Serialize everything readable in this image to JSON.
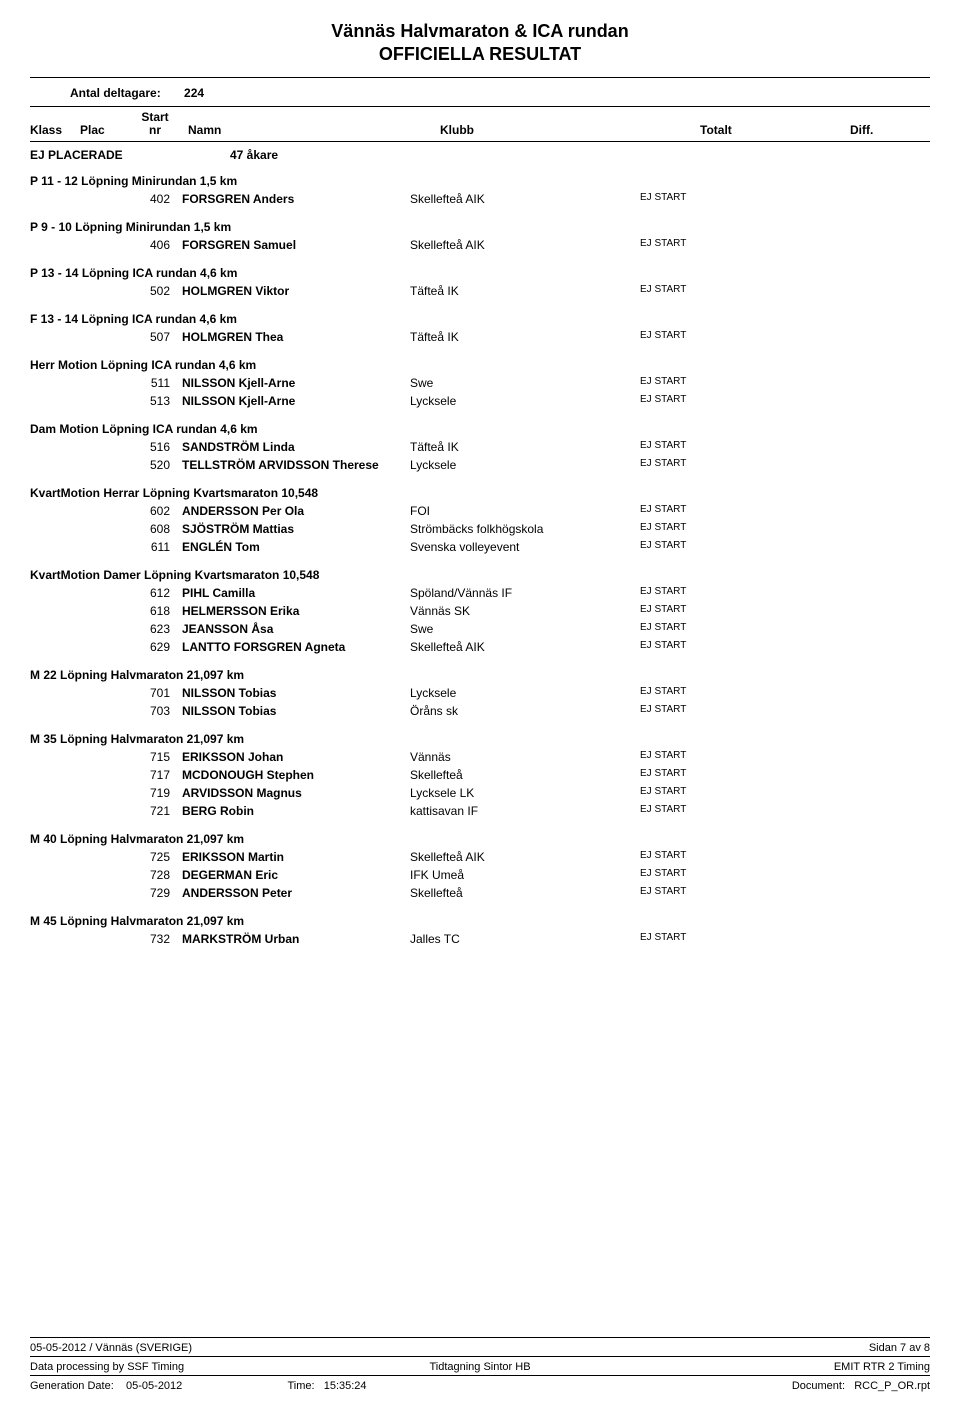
{
  "title": {
    "line1": "Vännäs Halvmaraton & ICA rundan",
    "line2": "OFFICIELLA RESULTAT"
  },
  "participants": {
    "label": "Antal deltagare:",
    "count": "224"
  },
  "headers": {
    "klass": "Klass",
    "plac": "Plac",
    "start": "Start",
    "nr": "nr",
    "namn": "Namn",
    "klubb": "Klubb",
    "totalt": "Totalt",
    "diff": "Diff."
  },
  "ej_placerade": {
    "label": "EJ PLACERADE",
    "akare": "47 åkare"
  },
  "status_label": "EJ START",
  "groups": [
    {
      "title": "P 11 - 12  Löpning Minirundan 1,5 km",
      "rows": [
        {
          "nr": "402",
          "name": "FORSGREN Anders",
          "klubb": "Skellefteå AIK"
        }
      ]
    },
    {
      "title": "P 9 - 10  Löpning Minirundan 1,5 km",
      "rows": [
        {
          "nr": "406",
          "name": "FORSGREN Samuel",
          "klubb": "Skellefteå AIK"
        }
      ]
    },
    {
      "title": "P 13 - 14  Löpning ICA rundan 4,6 km",
      "rows": [
        {
          "nr": "502",
          "name": "HOLMGREN Viktor",
          "klubb": "Täfteå IK"
        }
      ]
    },
    {
      "title": "F 13 - 14  Löpning ICA rundan 4,6 km",
      "rows": [
        {
          "nr": "507",
          "name": "HOLMGREN Thea",
          "klubb": "Täfteå IK"
        }
      ]
    },
    {
      "title": "Herr Motion  Löpning ICA rundan 4,6 km",
      "rows": [
        {
          "nr": "511",
          "name": "NILSSON Kjell-Arne",
          "klubb": "Swe"
        },
        {
          "nr": "513",
          "name": "NILSSON Kjell-Arne",
          "klubb": "Lycksele"
        }
      ]
    },
    {
      "title": "Dam Motion  Löpning ICA rundan 4,6 km",
      "rows": [
        {
          "nr": "516",
          "name": "SANDSTRÖM Linda",
          "klubb": "Täfteå IK"
        },
        {
          "nr": "520",
          "name": "TELLSTRÖM ARVIDSSON Therese",
          "klubb": "Lycksele"
        }
      ]
    },
    {
      "title": "KvartMotion Herrar  Löpning Kvartsmaraton 10,548",
      "rows": [
        {
          "nr": "602",
          "name": "ANDERSSON Per Ola",
          "klubb": "FOI"
        },
        {
          "nr": "608",
          "name": "SJÖSTRÖM Mattias",
          "klubb": "Strömbäcks folkhögskola"
        },
        {
          "nr": "611",
          "name": "ENGLÉN Tom",
          "klubb": "Svenska volleyevent"
        }
      ]
    },
    {
      "title": "KvartMotion Damer  Löpning Kvartsmaraton 10,548",
      "rows": [
        {
          "nr": "612",
          "name": "PIHL Camilla",
          "klubb": "Spöland/Vännäs IF"
        },
        {
          "nr": "618",
          "name": "HELMERSSON Erika",
          "klubb": "Vännäs SK"
        },
        {
          "nr": "623",
          "name": "JEANSSON Åsa",
          "klubb": "Swe"
        },
        {
          "nr": "629",
          "name": "LANTTO FORSGREN Agneta",
          "klubb": "Skellefteå AIK"
        }
      ]
    },
    {
      "title": "M 22  Löpning Halvmaraton 21,097 km",
      "rows": [
        {
          "nr": "701",
          "name": "NILSSON Tobias",
          "klubb": "Lycksele"
        },
        {
          "nr": "703",
          "name": "NILSSON Tobias",
          "klubb": "Öråns sk"
        }
      ]
    },
    {
      "title": "M 35  Löpning Halvmaraton 21,097 km",
      "rows": [
        {
          "nr": "715",
          "name": "ERIKSSON Johan",
          "klubb": "Vännäs"
        },
        {
          "nr": "717",
          "name": "MCDONOUGH Stephen",
          "klubb": "Skellefteå"
        },
        {
          "nr": "719",
          "name": "ARVIDSSON Magnus",
          "klubb": "Lycksele LK"
        },
        {
          "nr": "721",
          "name": "BERG Robin",
          "klubb": "kattisavan IF"
        }
      ]
    },
    {
      "title": "M 40  Löpning Halvmaraton 21,097 km",
      "rows": [
        {
          "nr": "725",
          "name": "ERIKSSON Martin",
          "klubb": "Skellefteå AIK"
        },
        {
          "nr": "728",
          "name": "DEGERMAN Eric",
          "klubb": "IFK Umeå"
        },
        {
          "nr": "729",
          "name": "ANDERSSON Peter",
          "klubb": "Skellefteå"
        }
      ]
    },
    {
      "title": "M 45  Löpning Halvmaraton 21,097 km",
      "rows": [
        {
          "nr": "732",
          "name": "MARKSTRÖM Urban",
          "klubb": "Jalles TC"
        }
      ]
    }
  ],
  "footer": {
    "line1_left": "05-05-2012 / Vännäs (SVERIGE)",
    "line1_right": "Sidan 7 av 8",
    "line2_left": "Data processing by SSF Timing",
    "line2_mid": "Tidtagning Sintor HB",
    "line2_right": "EMIT RTR 2 Timing",
    "gen_label": "Generation Date:",
    "gen_date": "05-05-2012",
    "time_label": "Time:",
    "gen_time": "15:35:24",
    "doc_label": "Document:",
    "doc_name": "RCC_P_OR.rpt"
  }
}
